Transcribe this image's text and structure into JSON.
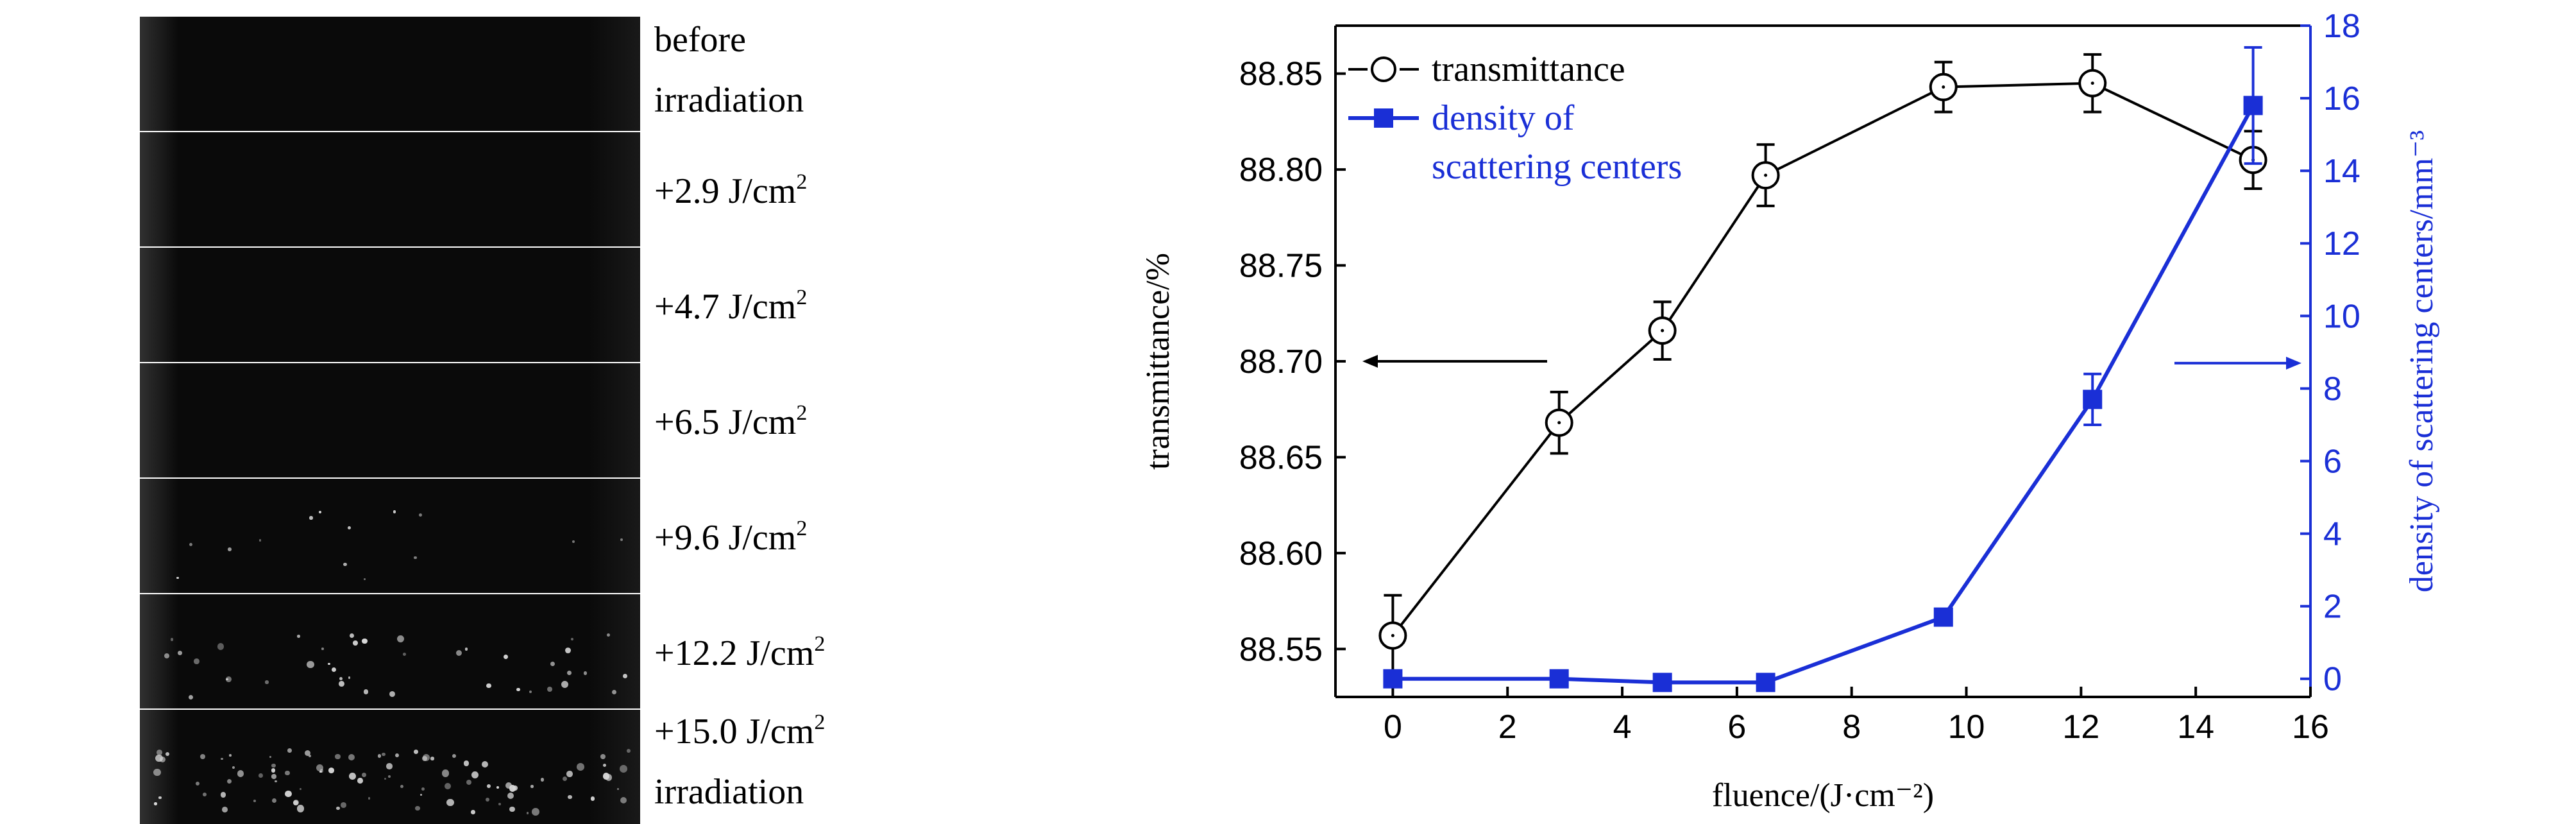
{
  "left_panel": {
    "labels": [
      [
        "before",
        "irradiation"
      ],
      [
        "+2.9 J/cm",
        "2"
      ],
      [
        "+4.7 J/cm",
        "2"
      ],
      [
        "+6.5 J/cm",
        "2"
      ],
      [
        "+9.6 J/cm",
        "2"
      ],
      [
        "+12.2 J/cm",
        "2"
      ],
      [
        "+15.0 J/cm",
        "2",
        "irradiation"
      ]
    ]
  },
  "chart_data": {
    "type": "line",
    "xlabel": "fluence/(J·cm⁻²)",
    "ylabel_left": "transmittance/%",
    "ylabel_right": "density of scattering centers/mm⁻³",
    "xlim": [
      -1,
      16
    ],
    "ylim_left": [
      88.525,
      88.875
    ],
    "ylim_right": [
      -0.5,
      18
    ],
    "xticks": [
      0,
      2,
      4,
      6,
      8,
      10,
      12,
      14,
      16
    ],
    "yticks_left": [
      "88.55",
      "88.60",
      "88.65",
      "88.70",
      "88.75",
      "88.80",
      "88.85"
    ],
    "yticks_right": [
      0,
      2,
      4,
      6,
      8,
      10,
      12,
      14,
      16,
      18
    ],
    "series": [
      {
        "name": "transmittance",
        "axis": "left",
        "color": "#000000",
        "marker": "open-circle",
        "x": [
          0,
          2.9,
          4.7,
          6.5,
          9.6,
          12.2,
          15.0
        ],
        "y": [
          88.557,
          88.668,
          88.716,
          88.797,
          88.843,
          88.845,
          88.805
        ],
        "err": [
          0.021,
          0.016,
          0.015,
          0.016,
          0.013,
          0.015,
          0.015
        ]
      },
      {
        "name": "density of scattering centers",
        "axis": "right",
        "color": "#1a2fd6",
        "marker": "filled-square",
        "x": [
          0,
          2.9,
          4.7,
          6.5,
          9.6,
          12.2,
          15.0
        ],
        "y": [
          0.0,
          0.0,
          -0.1,
          -0.1,
          1.7,
          7.7,
          15.8
        ],
        "err": [
          0,
          0,
          0,
          0,
          0,
          0.7,
          1.6
        ]
      }
    ],
    "legend": {
      "position": "top-left",
      "entries": [
        [
          "transmittance"
        ],
        [
          "density of",
          "scattering centers"
        ]
      ]
    },
    "annotations": [
      {
        "text": "",
        "kind": "arrow-left",
        "axis": "left"
      },
      {
        "text": "",
        "kind": "arrow-right",
        "axis": "right"
      }
    ]
  }
}
